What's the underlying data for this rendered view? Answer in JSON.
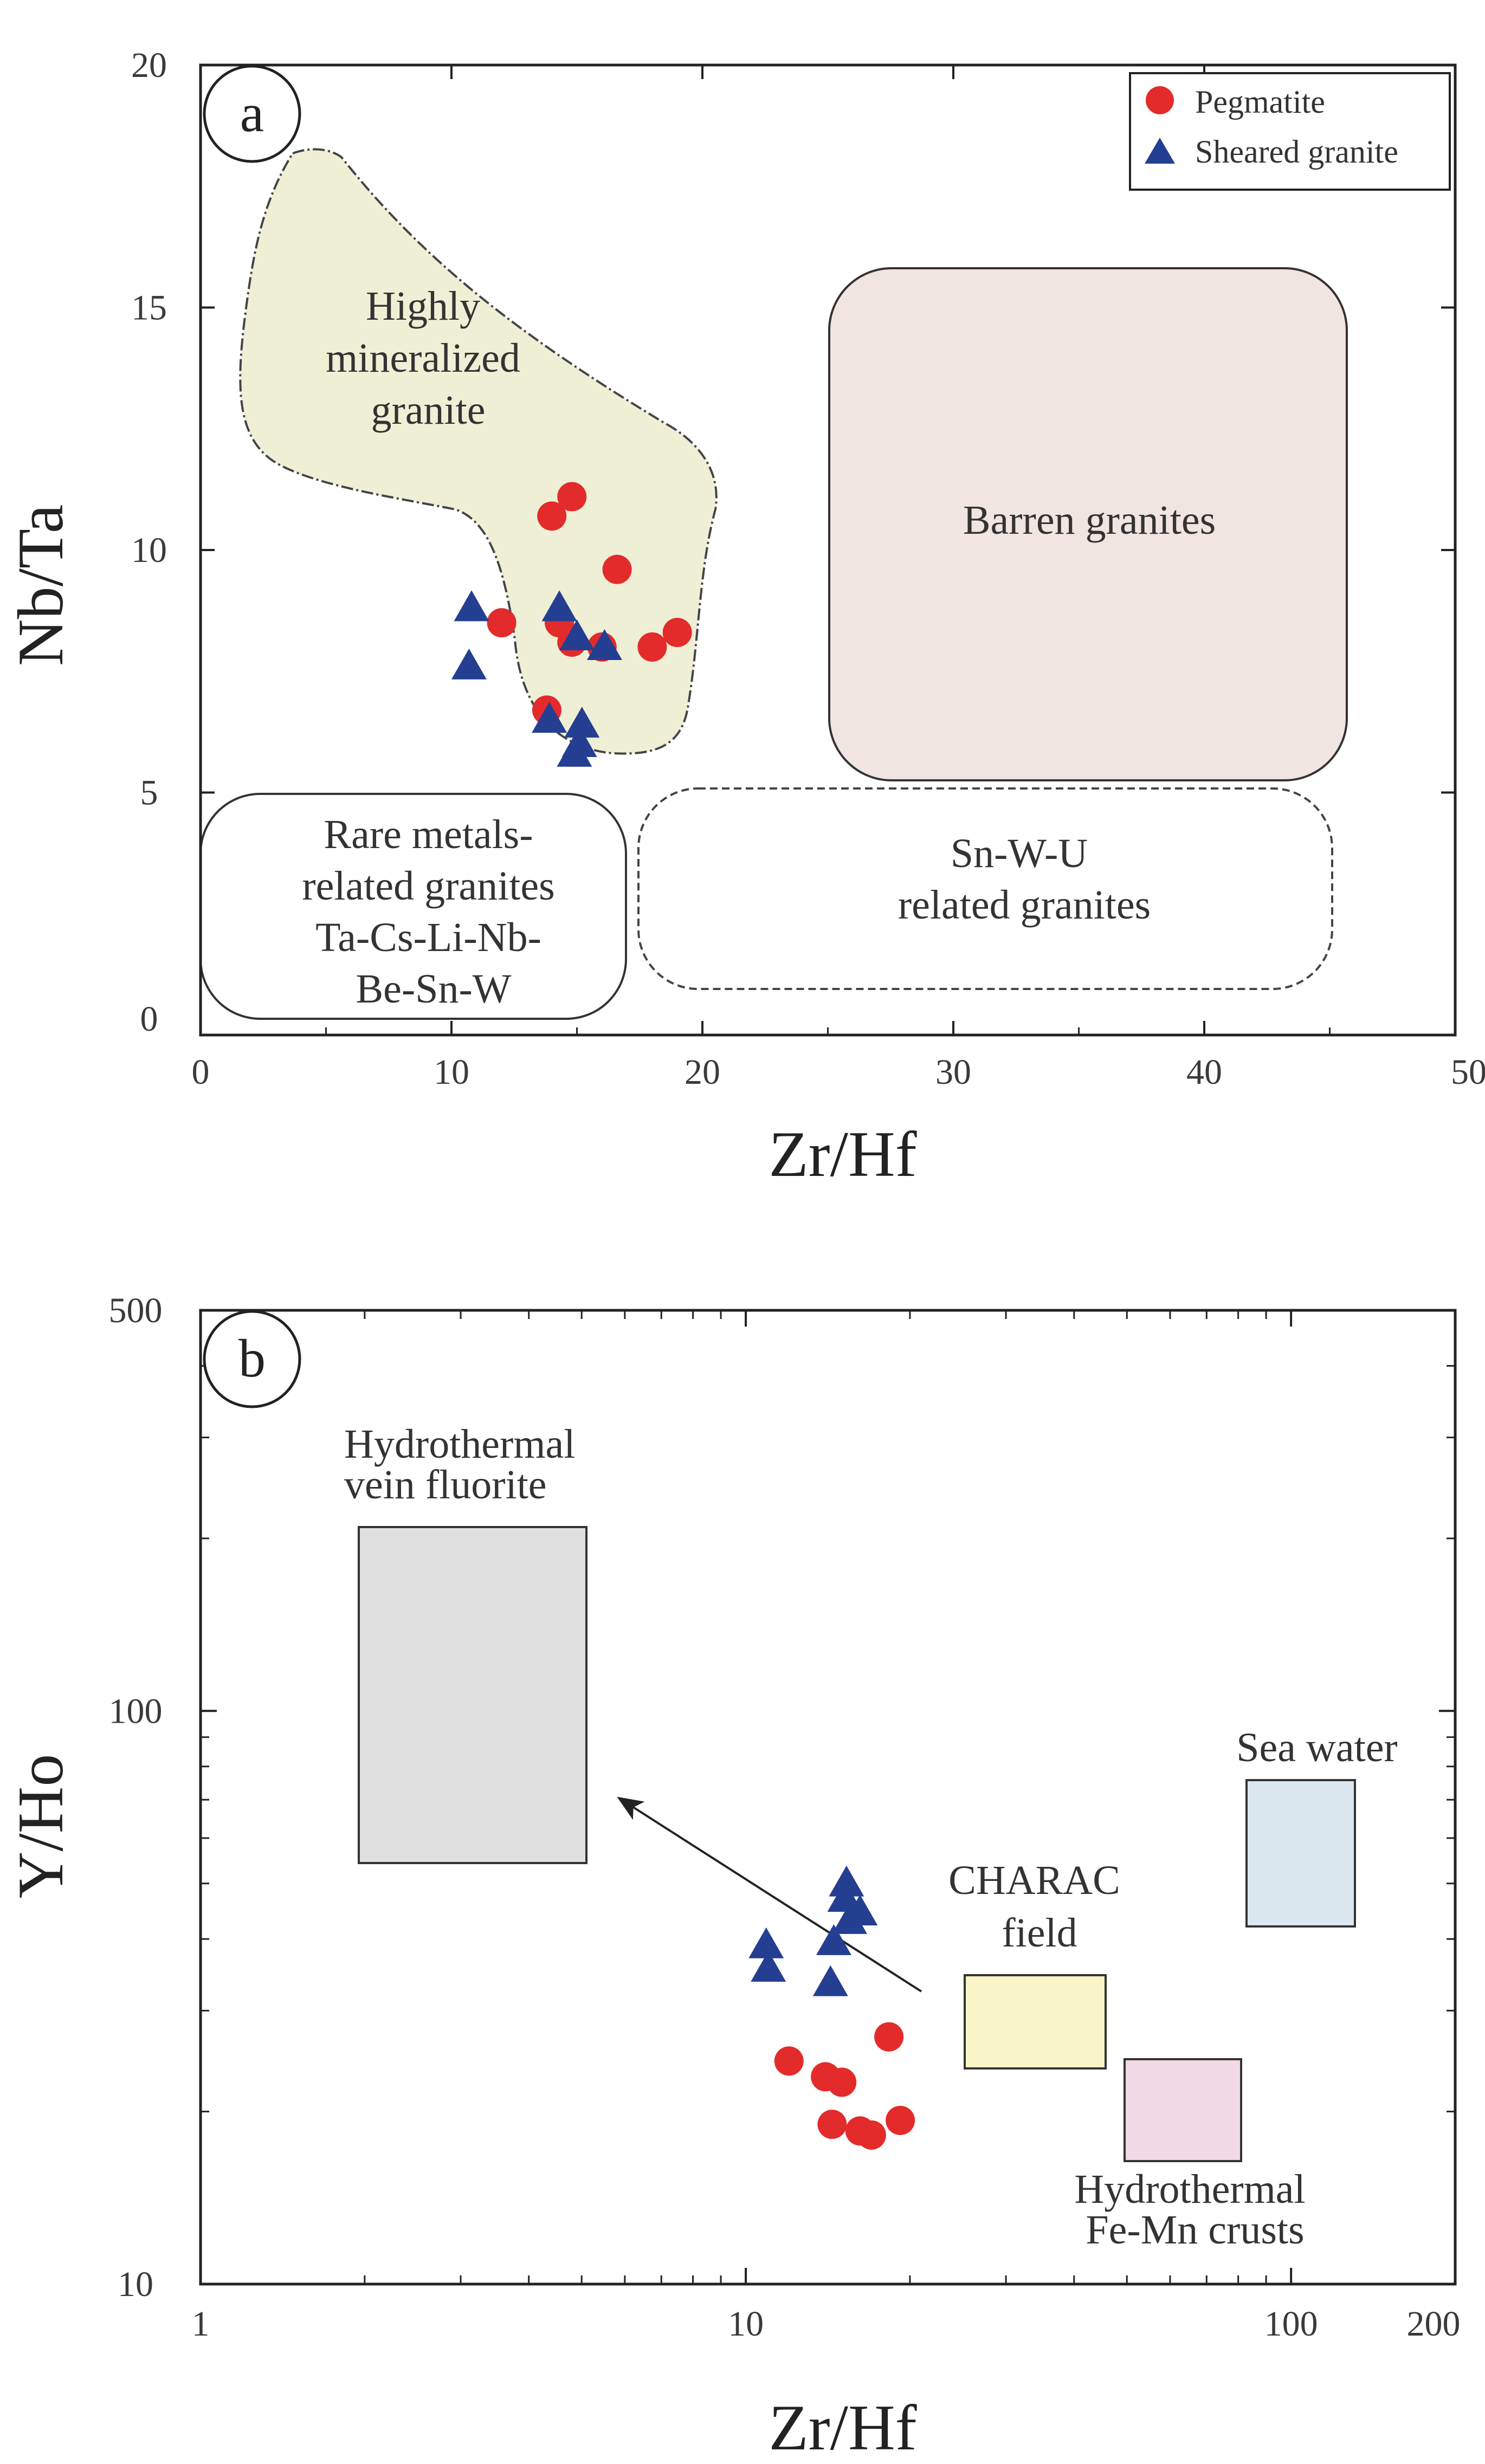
{
  "colors": {
    "pegmatite": "#e32b2b",
    "sheared_granite": "#243f91",
    "highly_mineralized": "#efefd6",
    "barren": "#f1e5e1",
    "hydro_vein": "#e0e0e0",
    "charac": "#f8f5c7",
    "fe_mn": "#f1dae6",
    "sea_water": "#dce8f0"
  },
  "chart_data": [
    {
      "panel": "a",
      "type": "scatter",
      "xlabel": "Zr/Hf",
      "ylabel": "Nb/Ta",
      "xlim": [
        0,
        50
      ],
      "ylim": [
        0,
        20
      ],
      "x_ticks": [
        "0",
        "10",
        "20",
        "30",
        "40",
        "50"
      ],
      "y_ticks": [
        "0",
        "5",
        "10",
        "15",
        "20"
      ],
      "legend": [
        {
          "label": "Pegmatite",
          "marker": "circle"
        },
        {
          "label": "Sheared granite",
          "marker": "triangle"
        }
      ],
      "fields": [
        {
          "id": "highly-mineralized",
          "lines": [
            "Highly",
            "mineralized",
            "granite"
          ]
        },
        {
          "id": "barren",
          "lines": [
            "Barren granites"
          ]
        },
        {
          "id": "rare-metals",
          "lines": [
            "Rare metals-",
            "related granites",
            "Ta-Cs-Li-Nb-",
            "Be-Sn-W"
          ]
        },
        {
          "id": "sn-w-u",
          "lines": [
            "Sn-W-U",
            "related granites"
          ]
        }
      ],
      "series": [
        {
          "name": "Pegmatite",
          "points": [
            [
              12.0,
              8.5
            ],
            [
              14.0,
              10.7
            ],
            [
              14.8,
              11.1
            ],
            [
              14.3,
              8.5
            ],
            [
              14.8,
              8.1
            ],
            [
              16.0,
              8.0
            ],
            [
              16.6,
              9.6
            ],
            [
              18.0,
              8.0
            ],
            [
              19.0,
              8.3
            ],
            [
              13.8,
              6.7
            ]
          ]
        },
        {
          "name": "Sheared granite",
          "points": [
            [
              10.8,
              8.8
            ],
            [
              10.7,
              7.6
            ],
            [
              14.3,
              8.8
            ],
            [
              15.0,
              8.2
            ],
            [
              16.1,
              8.0
            ],
            [
              13.9,
              6.5
            ],
            [
              15.2,
              6.4
            ],
            [
              15.1,
              6.0
            ],
            [
              14.9,
              5.8
            ]
          ]
        }
      ]
    },
    {
      "panel": "b",
      "type": "scatter",
      "xscale": "log",
      "yscale": "log",
      "xlabel": "Zr/Hf",
      "ylabel": "Y/Ho",
      "xlim": [
        1,
        200
      ],
      "ylim": [
        10,
        500
      ],
      "x_ticks": [
        {
          "v": 1,
          "l": "1"
        },
        {
          "v": 10,
          "l": "10"
        },
        {
          "v": 100,
          "l": "100"
        },
        {
          "v": 200,
          "l": "200"
        }
      ],
      "y_ticks": [
        {
          "v": 10,
          "l": "10"
        },
        {
          "v": 100,
          "l": "100"
        },
        {
          "v": 500,
          "l": "500"
        }
      ],
      "fields": [
        {
          "id": "hydrothermal-vein-fluorite",
          "lines": [
            "Hydrothermal",
            "vein fluorite"
          ]
        },
        {
          "id": "charac",
          "lines": [
            "CHARAC",
            "field"
          ]
        },
        {
          "id": "fe-mn-crusts",
          "lines": [
            "Hydrothermal",
            "Fe-Mn crusts"
          ]
        },
        {
          "id": "sea-water",
          "lines": [
            "Sea water"
          ]
        }
      ],
      "series": [
        {
          "name": "Pegmatite",
          "points": [
            [
              12.0,
              24.5
            ],
            [
              14.0,
              23.0
            ],
            [
              15.0,
              22.5
            ],
            [
              18.3,
              27.0
            ],
            [
              14.4,
              19.0
            ],
            [
              16.2,
              18.5
            ],
            [
              17.0,
              18.2
            ],
            [
              19.2,
              19.3
            ]
          ]
        },
        {
          "name": "Sheared granite",
          "points": [
            [
              10.9,
              39.0
            ],
            [
              11.0,
              35.5
            ],
            [
              14.3,
              33.5
            ],
            [
              14.5,
              39.5
            ],
            [
              15.5,
              43.0
            ],
            [
              15.2,
              47.0
            ],
            [
              16.2,
              44.5
            ],
            [
              15.3,
              50.0
            ]
          ]
        }
      ]
    }
  ]
}
